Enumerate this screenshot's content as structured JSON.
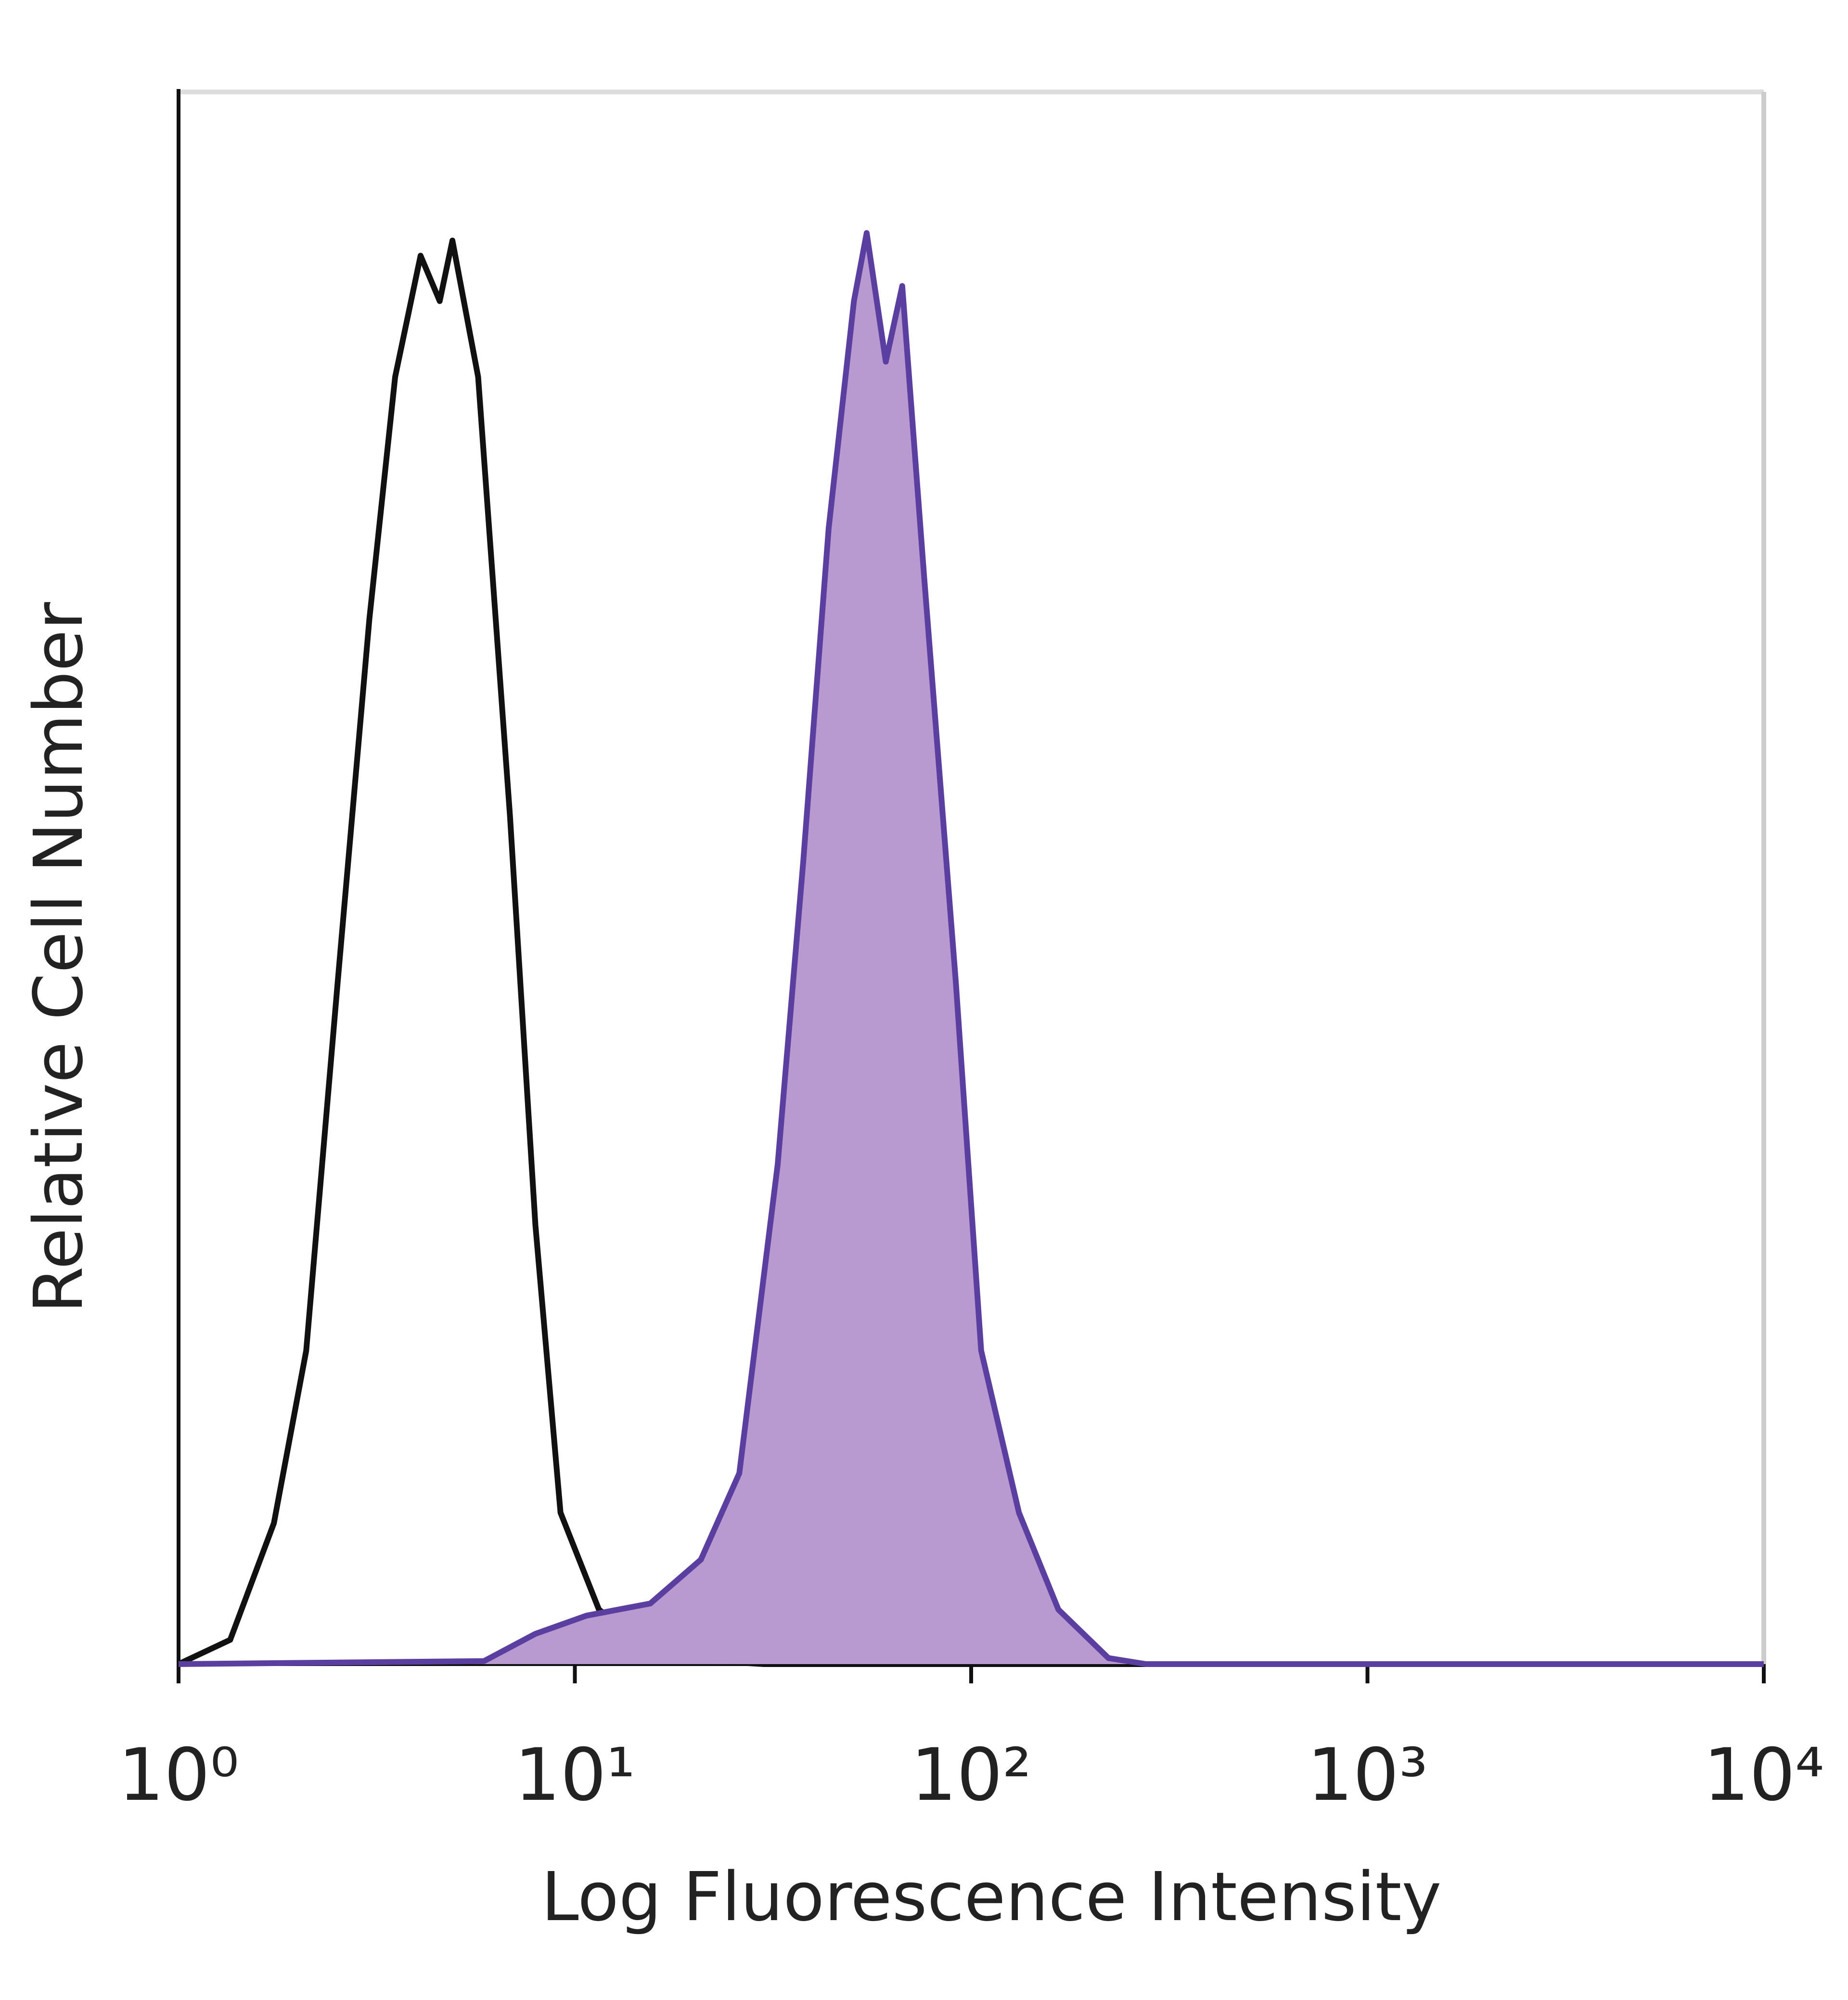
{
  "chart_data": {
    "type": "histogram-line",
    "x_label": "Log Fluorescence Intensity",
    "y_label": "Relative Cell Number",
    "xscale": "log",
    "xlim": [
      1,
      10000
    ],
    "xticks": [
      {
        "value": 1,
        "label": "10⁰"
      },
      {
        "value": 10,
        "label": "10¹"
      },
      {
        "value": 100,
        "label": "10²"
      },
      {
        "value": 1000,
        "label": "10³"
      },
      {
        "value": 10000,
        "label": "10⁴"
      }
    ],
    "ylim": [
      0,
      100
    ],
    "series": [
      {
        "color": "#111111",
        "filled": false,
        "x": [
          1,
          1.35,
          1.74,
          2.1,
          2.52,
          3.03,
          3.52,
          4.08,
          4.56,
          4.91,
          5.7,
          6.86,
          7.95,
          9.2,
          11.5,
          16.7,
          30,
          10000
        ],
        "values": [
          0,
          1.6,
          9.3,
          20.7,
          45,
          69,
          85,
          93,
          90,
          94,
          85,
          56,
          29,
          10,
          3.6,
          0.4,
          0,
          0
        ]
      },
      {
        "color": "#5b3fa0",
        "fill": "#b89ad0",
        "filled": true,
        "x": [
          1,
          5.9,
          7.95,
          10.7,
          15.5,
          20.8,
          26,
          32.5,
          37.7,
          43.7,
          50.6,
          54.5,
          60.9,
          67,
          76,
          91.5,
          106,
          132,
          166,
          222,
          276,
          10000
        ],
        "values": [
          0,
          0.2,
          2,
          3.2,
          4,
          6.9,
          12.6,
          33,
          53,
          75,
          90,
          94.5,
          86,
          91,
          72,
          45,
          20.7,
          10,
          3.6,
          0.4,
          0,
          0
        ]
      }
    ]
  }
}
